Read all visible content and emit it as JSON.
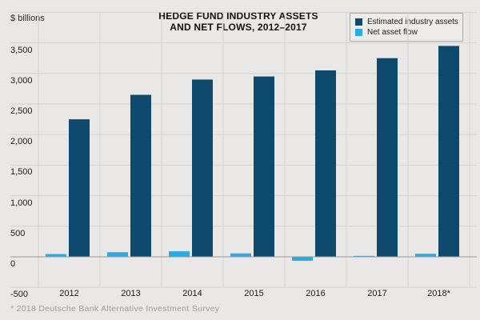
{
  "header": {
    "y_unit_label": "$ billions",
    "title_line1": "HEDGE FUND INDUSTRY ASSETS",
    "title_line2": "AND NET FLOWS, 2012–2017"
  },
  "legend": {
    "items": [
      {
        "label": "Estimated industry assets",
        "color": "#0e4a6e"
      },
      {
        "label": "Net asset flow",
        "color": "#29aae2"
      }
    ]
  },
  "footnote": "* 2018 Deutsche Bank Alternative Investment Survey",
  "colors": {
    "background": "#e9e8e6",
    "grid_line": "#d3d2d0",
    "zero_line": "#989795",
    "assets_bar": "#0e4a6e",
    "flow_bar": "#29aae2",
    "text": "#1b1b1b",
    "footnote_text": "#9c9b99"
  },
  "chart_data": {
    "type": "bar",
    "title": "HEDGE FUND INDUSTRY ASSETS AND NET FLOWS, 2012–2017",
    "ylabel": "$ billions",
    "xlabel": "",
    "categories": [
      "2012",
      "2013",
      "2014",
      "2015",
      "2016",
      "2017",
      "2018*"
    ],
    "series": [
      {
        "name": "Estimated industry assets",
        "color": "#0e4a6e",
        "values": [
          2250,
          2650,
          2900,
          2950,
          3050,
          3250,
          3450
        ]
      },
      {
        "name": "Net asset flow",
        "color": "#29aae2",
        "values": [
          45,
          75,
          90,
          55,
          -65,
          15,
          50
        ]
      }
    ],
    "ylim": [
      -500,
      4000
    ],
    "yticks_labeled": [
      -500,
      0,
      500,
      1000,
      1500,
      2000,
      2500,
      3000,
      3500
    ],
    "grid": true,
    "legend_position": "top-right"
  }
}
